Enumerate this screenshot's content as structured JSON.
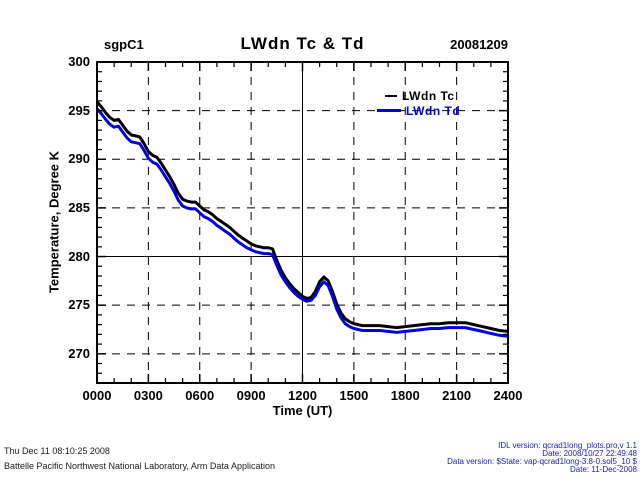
{
  "header": {
    "site": "sgpC1",
    "title": "LWdn Tc & Td",
    "date": "20081209"
  },
  "legend": {
    "entries": [
      {
        "label": "LWdn Tc",
        "color": "#000000"
      },
      {
        "label": "LWdn Td",
        "color": "#0000e0"
      }
    ]
  },
  "chart_data": {
    "type": "line",
    "title": "LWdn Tc & Td",
    "xlabel": "Time (UT)",
    "ylabel": "Temperature, Degree K",
    "xlim": [
      0,
      24
    ],
    "ylim": [
      267,
      300
    ],
    "x_ticks": {
      "values": [
        0,
        3,
        6,
        9,
        12,
        15,
        18,
        21,
        24
      ],
      "labels": [
        "0000",
        "0300",
        "0600",
        "0900",
        "1200",
        "1500",
        "1800",
        "2100",
        "2400"
      ]
    },
    "y_ticks": {
      "values": [
        270,
        275,
        280,
        285,
        290,
        295,
        300
      ],
      "labels": [
        "270",
        "275",
        "280",
        "285",
        "290",
        "295",
        "300"
      ]
    },
    "grid": {
      "style": "dashed",
      "solid_x": 12,
      "solid_y": 280,
      "x_minor_step": 1,
      "y_minor_step": 1
    },
    "x": [
      0,
      0.25,
      0.5,
      0.75,
      1,
      1.25,
      1.5,
      1.75,
      2,
      2.25,
      2.5,
      2.75,
      3,
      3.25,
      3.5,
      3.75,
      4,
      4.25,
      4.5,
      4.75,
      5,
      5.25,
      5.5,
      5.75,
      6,
      6.25,
      6.5,
      6.75,
      7,
      7.25,
      7.5,
      7.75,
      8,
      8.25,
      8.5,
      8.75,
      9,
      9.25,
      9.5,
      9.75,
      10,
      10.25,
      10.5,
      10.75,
      11,
      11.25,
      11.5,
      11.75,
      12,
      12.25,
      12.5,
      12.75,
      13,
      13.25,
      13.5,
      13.75,
      14,
      14.25,
      14.5,
      14.75,
      15,
      15.5,
      16,
      16.5,
      17,
      17.5,
      18,
      18.5,
      19,
      19.5,
      20,
      20.5,
      21,
      21.5,
      22,
      22.5,
      23,
      23.5,
      24
    ],
    "series": [
      {
        "name": "LWdn Tc",
        "color": "#000000",
        "values": [
          295.9,
          295.4,
          294.8,
          294.3,
          294.0,
          294.1,
          293.5,
          292.9,
          292.5,
          292.4,
          292.3,
          291.6,
          290.8,
          290.4,
          290.2,
          289.6,
          288.9,
          288.2,
          287.4,
          286.5,
          285.9,
          285.7,
          285.6,
          285.6,
          285.2,
          284.8,
          284.6,
          284.3,
          283.9,
          283.6,
          283.3,
          283.0,
          282.6,
          282.2,
          281.9,
          281.6,
          281.3,
          281.1,
          281.0,
          280.9,
          280.9,
          280.8,
          279.6,
          278.6,
          277.8,
          277.2,
          276.7,
          276.3,
          275.9,
          275.7,
          275.8,
          276.4,
          277.4,
          277.9,
          277.5,
          276.4,
          275.1,
          274.2,
          273.6,
          273.3,
          273.1,
          272.9,
          272.9,
          272.9,
          272.8,
          272.7,
          272.8,
          272.9,
          273.0,
          273.1,
          273.1,
          273.2,
          273.2,
          273.2,
          273.0,
          272.8,
          272.6,
          272.4,
          272.3
        ]
      },
      {
        "name": "LWdn Td",
        "color": "#0000e0",
        "values": [
          295.2,
          294.7,
          294.1,
          293.6,
          293.3,
          293.4,
          292.8,
          292.2,
          291.8,
          291.7,
          291.6,
          290.9,
          290.1,
          289.7,
          289.5,
          288.9,
          288.2,
          287.5,
          286.7,
          285.8,
          285.2,
          285.0,
          284.9,
          284.9,
          284.5,
          284.1,
          283.9,
          283.6,
          283.2,
          282.9,
          282.6,
          282.3,
          281.9,
          281.5,
          281.2,
          280.9,
          280.7,
          280.5,
          280.4,
          280.3,
          280.3,
          280.2,
          279.1,
          278.1,
          277.4,
          276.8,
          276.3,
          275.9,
          275.6,
          275.4,
          275.5,
          276.0,
          276.9,
          277.4,
          277.0,
          275.9,
          274.6,
          273.7,
          273.1,
          272.8,
          272.6,
          272.4,
          272.4,
          272.4,
          272.3,
          272.2,
          272.3,
          272.4,
          272.5,
          272.6,
          272.6,
          272.7,
          272.7,
          272.7,
          272.5,
          272.3,
          272.1,
          271.9,
          271.8
        ]
      }
    ]
  },
  "footer": {
    "left_lines": [
      "Thu Dec 11 08:10:25 2008",
      "Battelle Pacific Northwest National Laboratory, Arm Data Application"
    ],
    "right_lines": [
      "IDL version: qcrad1long_plots.pro,v 1.1",
      "Date: 2008/10/27 22:49:48",
      "Data version: $State: vap-qcrad1long-3.8-0.sol5_10 $",
      "Date: 11-Dec-2008"
    ]
  }
}
